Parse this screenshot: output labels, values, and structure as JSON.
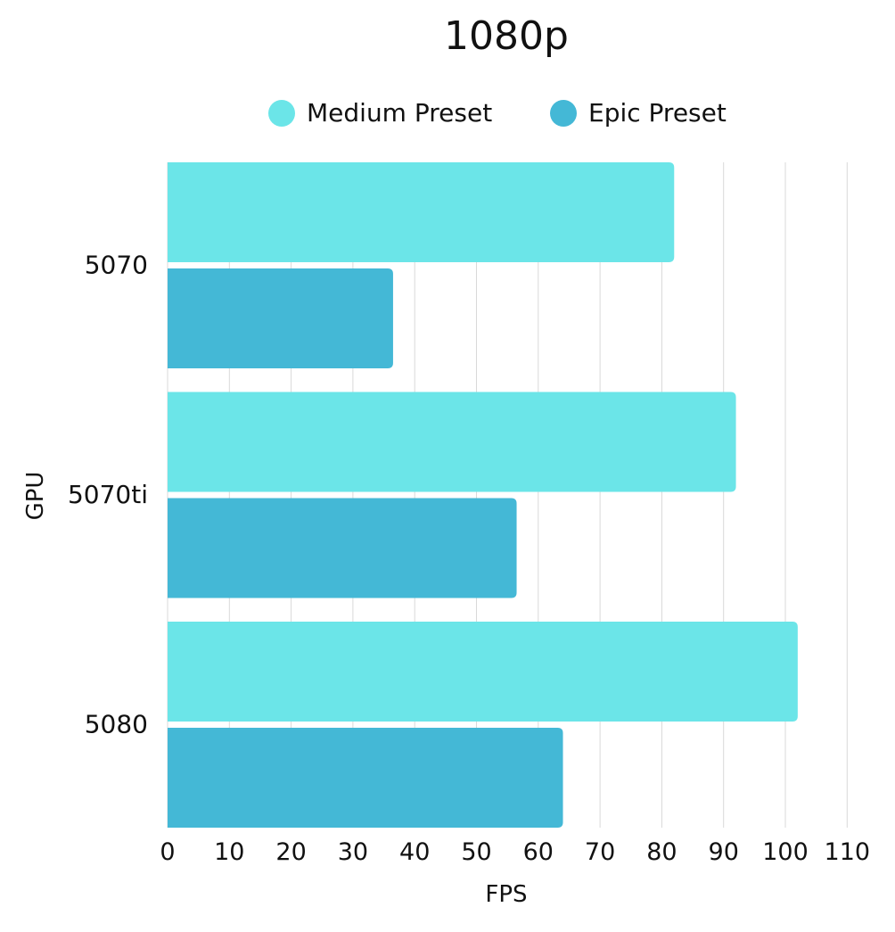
{
  "chart_data": {
    "type": "bar",
    "orientation": "horizontal",
    "title": "1080p",
    "xlabel": "FPS",
    "ylabel": "GPU",
    "categories": [
      "5070",
      "5070ti",
      "5080"
    ],
    "series": [
      {
        "name": "Medium Preset",
        "color": "#6BE5E8",
        "values": [
          82,
          92,
          102
        ]
      },
      {
        "name": "Epic Preset",
        "color": "#44B8D6",
        "values": [
          36.5,
          56.5,
          64
        ]
      }
    ],
    "xlim": [
      0,
      110
    ],
    "xticks": [
      "0",
      "10",
      "20",
      "30",
      "40",
      "50",
      "60",
      "70",
      "80",
      "90",
      "100",
      "110"
    ],
    "grid": "vertical",
    "legend_position": "top"
  }
}
